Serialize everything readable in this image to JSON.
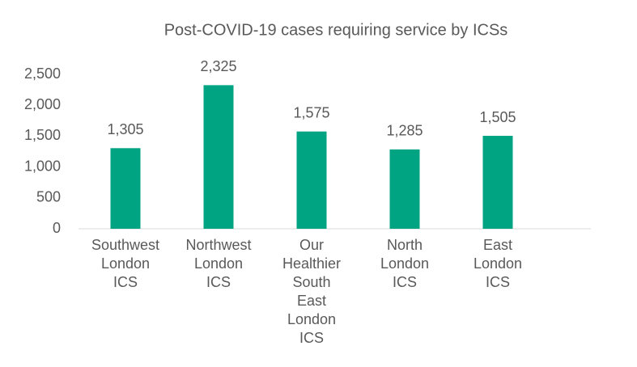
{
  "chart_data": {
    "type": "bar",
    "title": "Post-COVID-19 cases requiring service by ICSs",
    "categories": [
      "Southwest London ICS",
      "Northwest London ICS",
      "Our Healthier South East London ICS",
      "North London ICS",
      "East London ICS"
    ],
    "values": [
      1305,
      2325,
      1575,
      1285,
      1505
    ],
    "value_labels": [
      "1,305",
      "2,325",
      "1,575",
      "1,285",
      "1,505"
    ],
    "color": "#00a382",
    "ylim": [
      0,
      2500
    ],
    "yticks": [
      0,
      500,
      {
        "value": 1000,
        "label": "1,000"
      },
      {
        "value": 1500,
        "label": "1,500"
      },
      {
        "value": 2000,
        "label": "2,000"
      },
      {
        "value": 2500,
        "label": "2,500"
      }
    ],
    "grid": false
  }
}
